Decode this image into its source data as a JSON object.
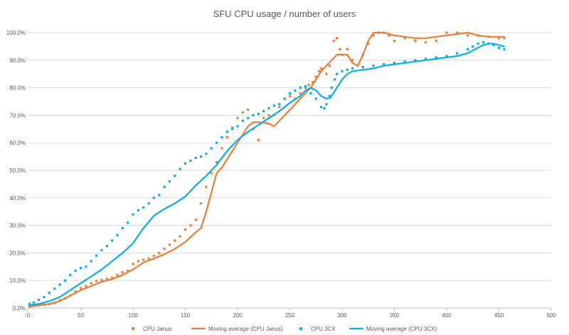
{
  "chart_data": {
    "type": "scatter",
    "title": "SFU CPU usage / number of users",
    "xlabel": "",
    "ylabel": "",
    "xlim": [
      0,
      500
    ],
    "ylim": [
      0,
      1
    ],
    "x_ticks": [
      "0",
      "50",
      "100",
      "150",
      "200",
      "250",
      "300",
      "350",
      "400",
      "450",
      "500"
    ],
    "y_ticks": [
      "0.0%",
      "10.0%",
      "20.0%",
      "30.0%",
      "40.0%",
      "50.0%",
      "60.0%",
      "70.0%",
      "80.0%",
      "90.0%",
      "100.0%"
    ],
    "grid": true,
    "legend_position": "bottom",
    "series": [
      {
        "name": "CPU Janus",
        "kind": "markers",
        "color": "#ED7D31",
        "x": [
          1,
          5,
          10,
          15,
          20,
          25,
          30,
          35,
          40,
          45,
          50,
          55,
          60,
          65,
          70,
          75,
          80,
          85,
          90,
          95,
          100,
          105,
          110,
          115,
          120,
          125,
          130,
          135,
          140,
          145,
          150,
          155,
          160,
          165,
          170,
          175,
          180,
          185,
          190,
          195,
          200,
          205,
          210,
          215,
          220,
          225,
          230,
          235,
          240,
          245,
          250,
          255,
          260,
          265,
          268,
          272,
          275,
          278,
          280,
          285,
          288,
          292,
          295,
          298,
          300,
          305,
          310,
          315,
          320,
          325,
          330,
          335,
          340,
          345,
          350,
          360,
          370,
          380,
          390,
          400,
          410,
          420,
          430,
          440,
          450,
          455
        ],
        "y": [
          0.005,
          0.008,
          0.01,
          0.012,
          0.014,
          0.018,
          0.028,
          0.035,
          0.045,
          0.06,
          0.072,
          0.08,
          0.09,
          0.098,
          0.102,
          0.106,
          0.11,
          0.12,
          0.13,
          0.135,
          0.16,
          0.17,
          0.175,
          0.18,
          0.19,
          0.2,
          0.215,
          0.23,
          0.245,
          0.26,
          0.285,
          0.3,
          0.32,
          0.38,
          0.44,
          0.49,
          0.53,
          0.58,
          0.62,
          0.655,
          0.69,
          0.71,
          0.72,
          0.65,
          0.61,
          0.69,
          0.7,
          0.7,
          0.73,
          0.76,
          0.77,
          0.76,
          0.78,
          0.8,
          0.81,
          0.82,
          0.84,
          0.86,
          0.87,
          0.85,
          0.88,
          0.97,
          0.98,
          0.94,
          0.92,
          0.94,
          0.9,
          0.88,
          0.92,
          0.96,
          0.99,
          1.0,
          1.0,
          0.99,
          0.97,
          0.98,
          0.97,
          0.965,
          0.97,
          1.0,
          1.0,
          0.99,
          0.99,
          0.985,
          0.98,
          0.98
        ]
      },
      {
        "name": "Moving average (CPU Janus)",
        "kind": "line",
        "color": "#ED7D31",
        "x": [
          1,
          10,
          20,
          30,
          40,
          50,
          60,
          70,
          80,
          90,
          100,
          110,
          120,
          130,
          140,
          150,
          160,
          165,
          170,
          175,
          180,
          185,
          190,
          195,
          200,
          205,
          210,
          215,
          220,
          230,
          235,
          240,
          250,
          260,
          265,
          270,
          275,
          280,
          285,
          290,
          295,
          300,
          305,
          310,
          315,
          320,
          325,
          330,
          340,
          350,
          360,
          370,
          380,
          390,
          400,
          410,
          420,
          425,
          430,
          440,
          450,
          455
        ],
        "y": [
          0.005,
          0.01,
          0.015,
          0.025,
          0.045,
          0.065,
          0.08,
          0.095,
          0.105,
          0.12,
          0.14,
          0.165,
          0.18,
          0.195,
          0.215,
          0.24,
          0.275,
          0.29,
          0.35,
          0.42,
          0.49,
          0.51,
          0.54,
          0.57,
          0.6,
          0.63,
          0.66,
          0.675,
          0.675,
          0.67,
          0.66,
          0.68,
          0.72,
          0.76,
          0.78,
          0.8,
          0.83,
          0.86,
          0.88,
          0.9,
          0.92,
          0.92,
          0.92,
          0.89,
          0.88,
          0.92,
          0.97,
          1.0,
          1.0,
          0.99,
          0.985,
          0.98,
          0.98,
          0.985,
          0.99,
          0.995,
          1.0,
          0.995,
          0.99,
          0.985,
          0.985,
          0.985
        ]
      },
      {
        "name": "CPU 3CX",
        "kind": "markers",
        "color": "#00B0F0",
        "x": [
          1,
          5,
          10,
          15,
          20,
          25,
          30,
          35,
          40,
          45,
          50,
          55,
          60,
          65,
          70,
          75,
          80,
          85,
          90,
          95,
          100,
          105,
          110,
          115,
          120,
          125,
          130,
          135,
          140,
          145,
          150,
          155,
          160,
          165,
          170,
          175,
          180,
          185,
          190,
          195,
          200,
          205,
          210,
          215,
          220,
          225,
          230,
          235,
          240,
          245,
          250,
          255,
          260,
          265,
          270,
          275,
          280,
          283,
          285,
          288,
          290,
          293,
          295,
          300,
          305,
          310,
          320,
          330,
          340,
          350,
          360,
          370,
          380,
          390,
          400,
          410,
          420,
          425,
          430,
          435,
          440,
          445,
          450,
          455
        ],
        "y": [
          0.015,
          0.02,
          0.03,
          0.04,
          0.055,
          0.07,
          0.085,
          0.1,
          0.12,
          0.135,
          0.145,
          0.15,
          0.17,
          0.19,
          0.21,
          0.225,
          0.245,
          0.265,
          0.29,
          0.31,
          0.34,
          0.355,
          0.365,
          0.38,
          0.4,
          0.41,
          0.44,
          0.46,
          0.48,
          0.505,
          0.525,
          0.535,
          0.545,
          0.55,
          0.56,
          0.58,
          0.6,
          0.62,
          0.64,
          0.65,
          0.66,
          0.68,
          0.69,
          0.7,
          0.705,
          0.715,
          0.725,
          0.735,
          0.74,
          0.76,
          0.78,
          0.79,
          0.8,
          0.805,
          0.78,
          0.76,
          0.73,
          0.725,
          0.74,
          0.77,
          0.8,
          0.83,
          0.85,
          0.86,
          0.865,
          0.87,
          0.875,
          0.88,
          0.885,
          0.89,
          0.895,
          0.9,
          0.905,
          0.91,
          0.915,
          0.925,
          0.94,
          0.95,
          0.96,
          0.965,
          0.96,
          0.955,
          0.945,
          0.94
        ]
      },
      {
        "name": "Moving average (CPU 3CX)",
        "kind": "line",
        "color": "#00B0F0",
        "x": [
          1,
          10,
          20,
          30,
          40,
          50,
          60,
          70,
          80,
          90,
          100,
          110,
          120,
          130,
          140,
          150,
          160,
          170,
          180,
          190,
          200,
          210,
          220,
          230,
          240,
          250,
          260,
          265,
          270,
          275,
          280,
          285,
          288,
          290,
          295,
          300,
          305,
          310,
          320,
          330,
          340,
          350,
          360,
          370,
          380,
          390,
          400,
          410,
          420,
          425,
          430,
          435,
          440,
          445,
          450,
          455
        ],
        "y": [
          0.01,
          0.015,
          0.025,
          0.04,
          0.065,
          0.09,
          0.115,
          0.14,
          0.17,
          0.2,
          0.235,
          0.29,
          0.335,
          0.36,
          0.38,
          0.405,
          0.445,
          0.48,
          0.52,
          0.57,
          0.61,
          0.64,
          0.665,
          0.69,
          0.715,
          0.745,
          0.77,
          0.79,
          0.8,
          0.79,
          0.77,
          0.76,
          0.762,
          0.77,
          0.8,
          0.83,
          0.85,
          0.86,
          0.865,
          0.87,
          0.88,
          0.885,
          0.89,
          0.895,
          0.9,
          0.905,
          0.91,
          0.915,
          0.925,
          0.935,
          0.945,
          0.955,
          0.96,
          0.96,
          0.955,
          0.95
        ]
      }
    ]
  }
}
